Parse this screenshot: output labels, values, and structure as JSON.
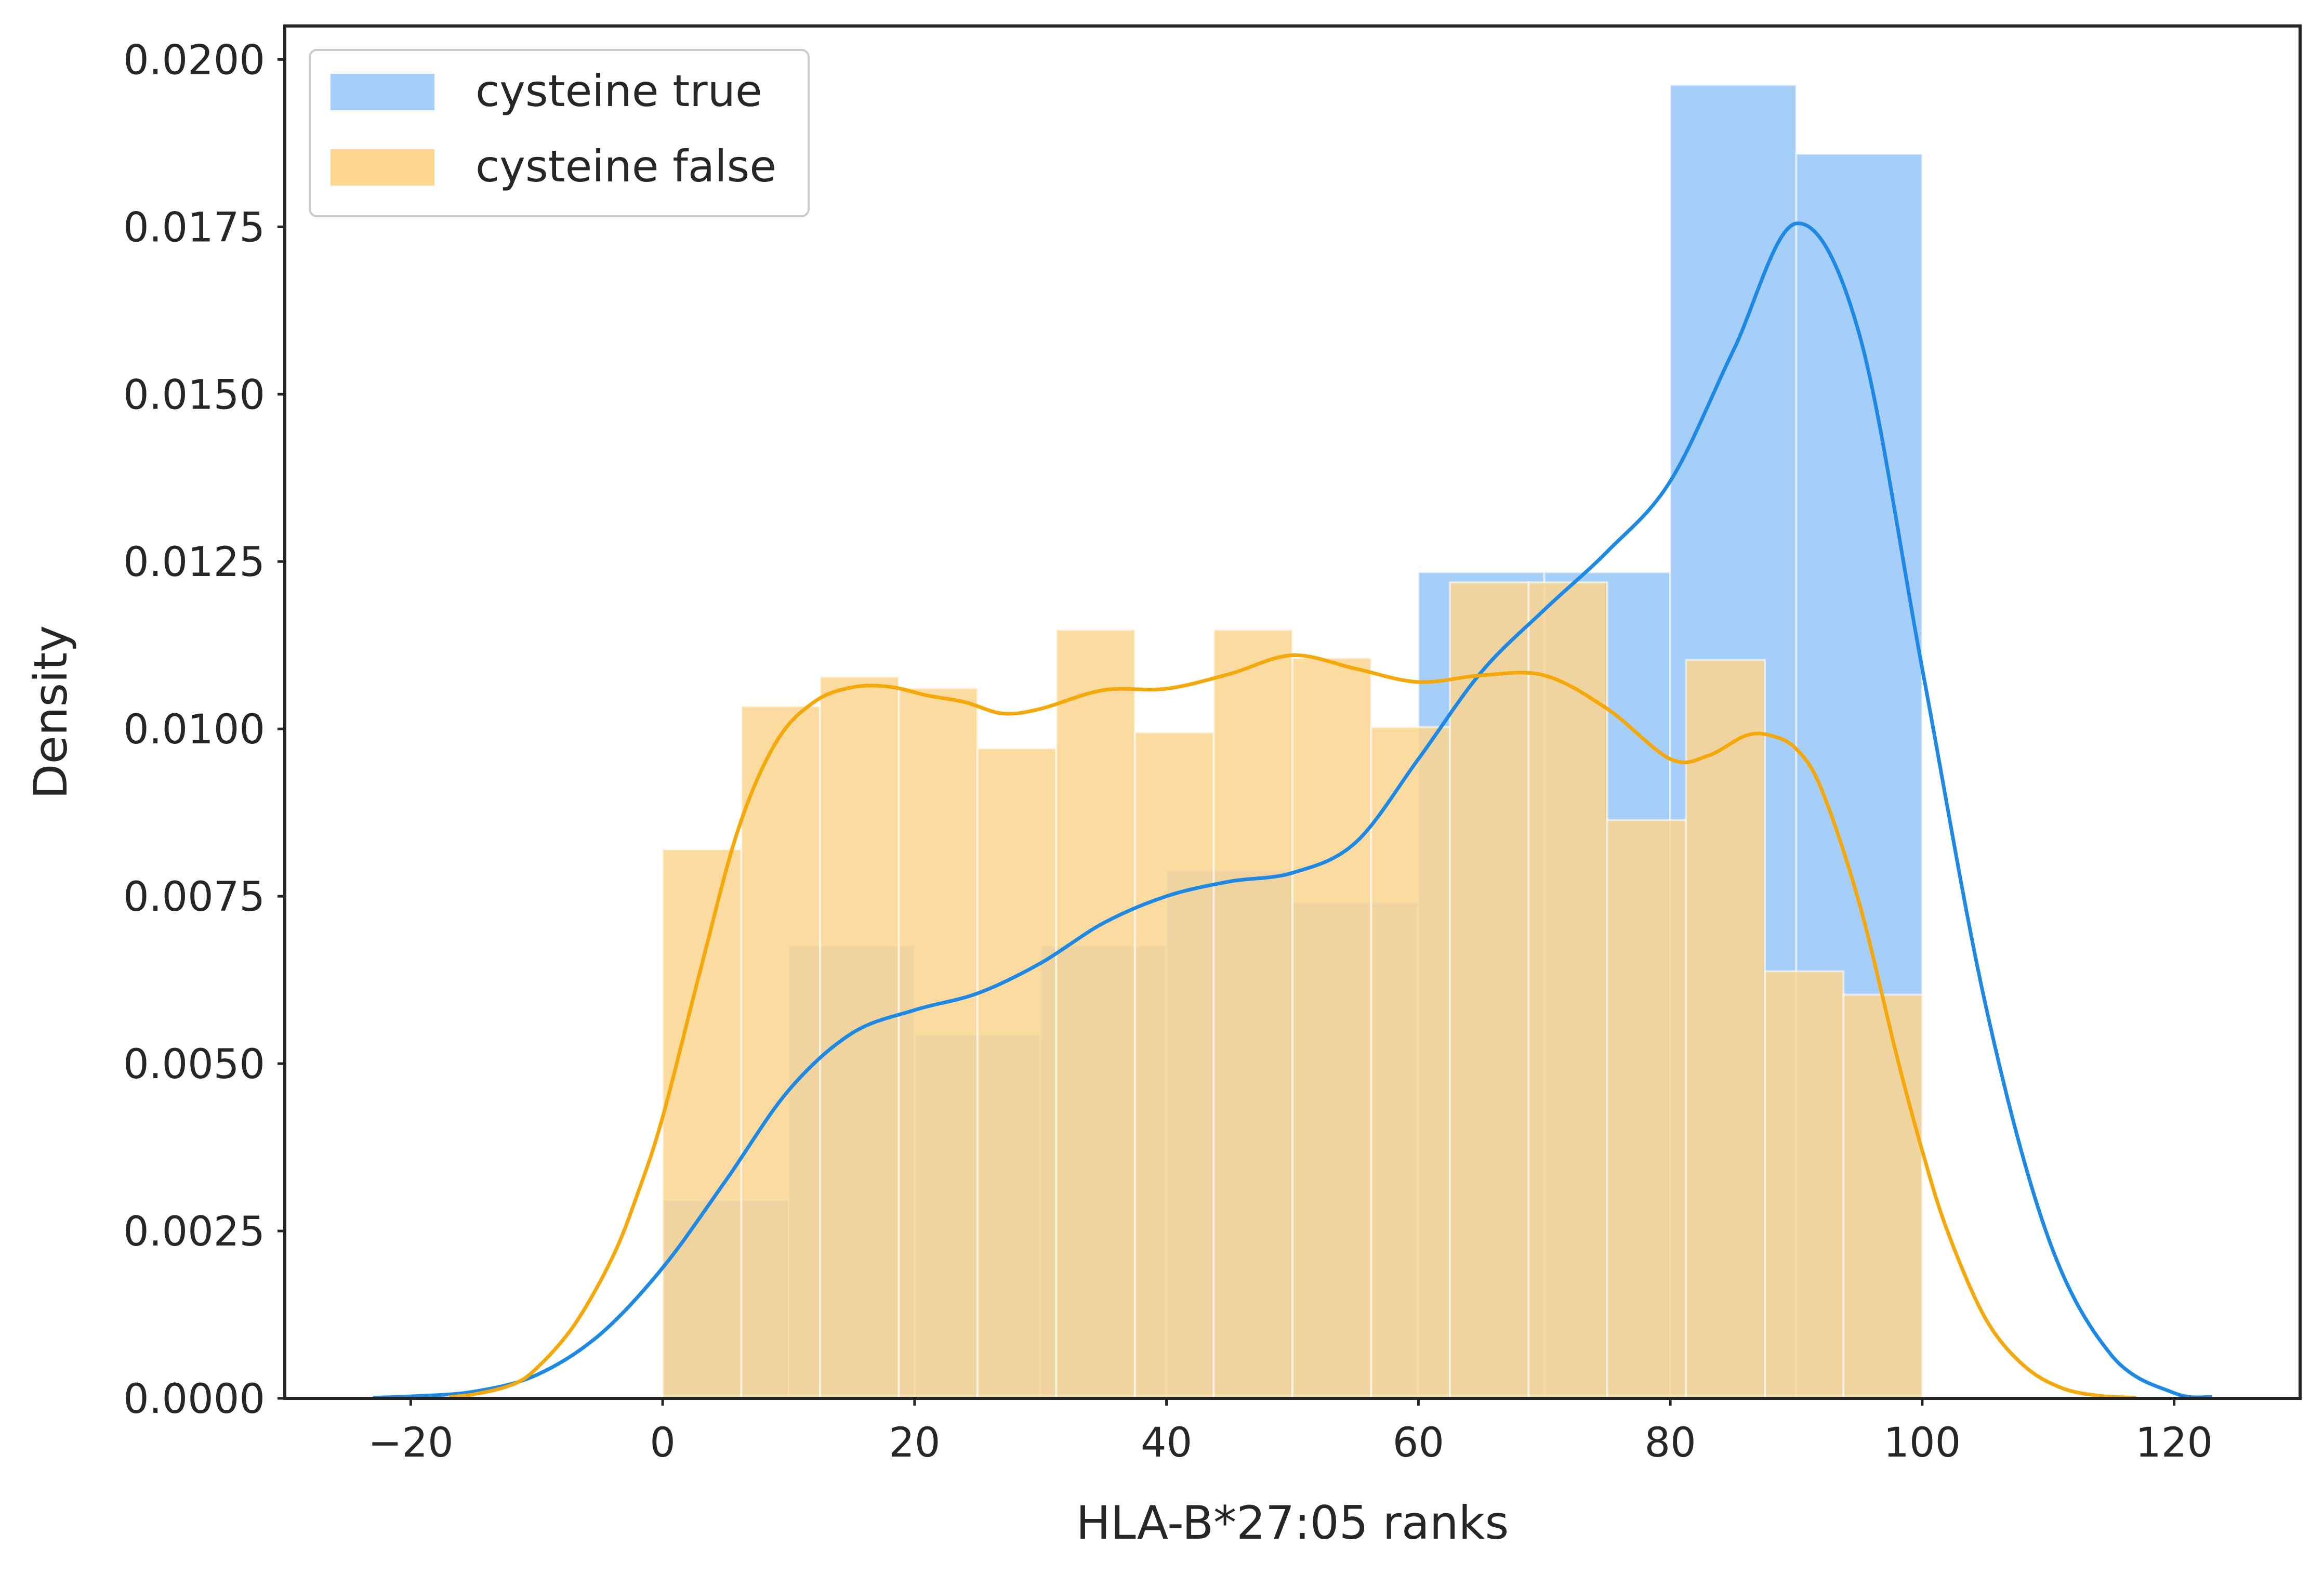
{
  "chart_data": {
    "type": "bar",
    "title": "",
    "xlabel": "HLA-B*27:05 ranks",
    "ylabel": "Density",
    "xlim": [
      -30,
      130
    ],
    "ylim": [
      0,
      0.0205
    ],
    "x_ticks": [
      -20,
      0,
      20,
      40,
      60,
      80,
      100,
      120
    ],
    "x_tick_labels": [
      "−20",
      "0",
      "20",
      "40",
      "60",
      "80",
      "100",
      "120"
    ],
    "y_ticks": [
      0,
      0.0025,
      0.005,
      0.0075,
      0.01,
      0.0125,
      0.015,
      0.0175,
      0.02
    ],
    "y_tick_labels": [
      "0.0000",
      "0.0025",
      "0.0050",
      "0.0075",
      "0.0100",
      "0.0125",
      "0.0150",
      "0.0175",
      "0.0200"
    ],
    "grid": false,
    "legend_position": "top-left",
    "series": [
      {
        "name": "cysteine true",
        "color": "#1E88E5",
        "fill_color": "#A5CFF8",
        "histogram": {
          "bin_edges": [
            0,
            10,
            20,
            30,
            40,
            50,
            60,
            70,
            80,
            90,
            100
          ],
          "values": [
            0.00296,
            0.00676,
            0.00543,
            0.00676,
            0.00789,
            0.00741,
            0.01234,
            0.01234,
            0.01962,
            0.01859
          ]
        },
        "kde": {
          "x": [
            -23,
            -20,
            -15,
            -10,
            -5,
            0,
            5,
            10,
            15,
            20,
            25,
            30,
            35,
            40,
            45,
            50,
            55,
            60,
            65,
            70,
            75,
            80,
            85,
            90,
            95,
            100,
            105,
            110,
            115,
            120,
            123
          ],
          "y": [
            1e-05,
            3e-05,
            0.0001,
            0.00035,
            0.00095,
            0.00195,
            0.00325,
            0.0046,
            0.00545,
            0.0058,
            0.00605,
            0.0065,
            0.0071,
            0.0075,
            0.00772,
            0.00785,
            0.0083,
            0.00955,
            0.01085,
            0.01178,
            0.01265,
            0.0137,
            0.01565,
            0.01755,
            0.0159,
            0.0109,
            0.0059,
            0.0024,
            0.00065,
            8e-05,
            2e-05
          ]
        }
      },
      {
        "name": "cysteine false",
        "color": "#F5A80A",
        "fill_color": "#FCD58F",
        "histogram": {
          "bin_edges": [
            0,
            6.25,
            12.5,
            18.75,
            25,
            31.25,
            37.5,
            43.75,
            50,
            56.25,
            62.5,
            68.75,
            75,
            81.25,
            87.5,
            93.75,
            100
          ],
          "values": [
            0.0082,
            0.01034,
            0.01078,
            0.01061,
            0.00971,
            0.01148,
            0.00995,
            0.01148,
            0.01106,
            0.01003,
            0.01219,
            0.01219,
            0.00864,
            0.01103,
            0.00638,
            0.00603
          ]
        },
        "kde": {
          "x": [
            -17,
            -15,
            -12,
            -10,
            -7,
            -4,
            -2,
            0,
            3,
            6,
            9,
            12,
            15,
            18,
            21,
            24,
            27,
            30,
            35,
            40,
            45,
            50,
            55,
            60,
            65,
            70,
            75,
            80,
            83,
            86,
            88,
            90,
            92,
            95,
            98,
            100,
            102,
            105,
            108,
            111,
            114,
            117
          ],
          "y": [
            2e-05,
            6e-05,
            0.0002,
            0.00045,
            0.0011,
            0.0021,
            0.00305,
            0.0042,
            0.0064,
            0.0085,
            0.0098,
            0.0104,
            0.01062,
            0.01063,
            0.0105,
            0.0104,
            0.01023,
            0.0103,
            0.01058,
            0.0106,
            0.01082,
            0.0111,
            0.0109,
            0.0107,
            0.0108,
            0.0108,
            0.0103,
            0.00955,
            0.0096,
            0.0099,
            0.0099,
            0.0097,
            0.0091,
            0.0074,
            0.0051,
            0.0037,
            0.0025,
            0.0012,
            0.0005,
            0.00016,
            4e-05,
            1e-05
          ]
        }
      }
    ]
  }
}
